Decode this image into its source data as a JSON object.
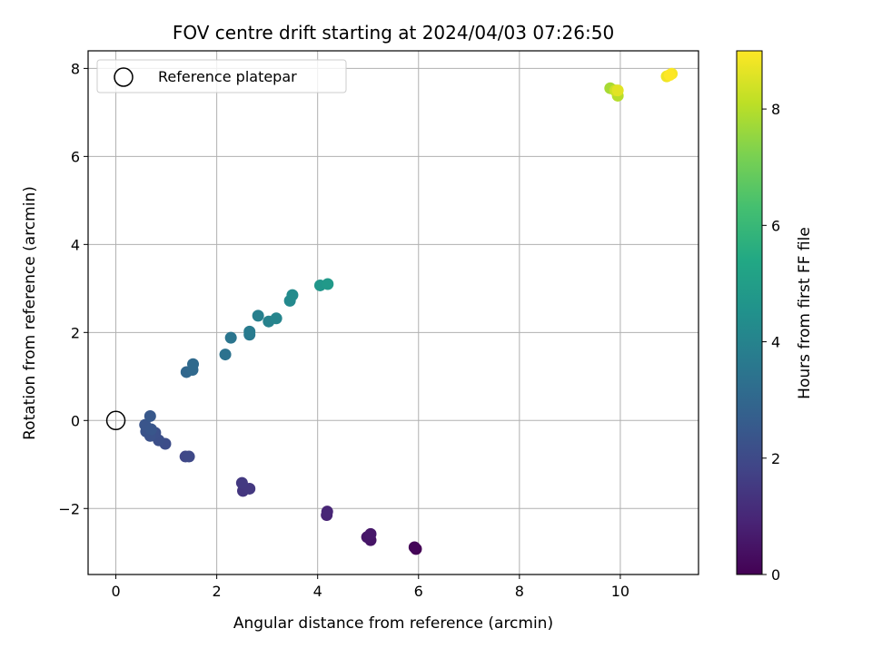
{
  "chart_data": {
    "type": "scatter",
    "title": "FOV centre drift starting at 2024/04/03 07:26:50",
    "xlabel": "Angular distance from reference (arcmin)",
    "ylabel": "Rotation from reference (arcmin)",
    "xlim": [
      -0.55,
      11.55
    ],
    "ylim": [
      -3.5,
      8.4
    ],
    "xticks": [
      0,
      2,
      4,
      6,
      8,
      10
    ],
    "xtick_labels": [
      "0",
      "2",
      "4",
      "6",
      "8",
      "10"
    ],
    "yticks": [
      -2,
      0,
      2,
      4,
      6,
      8
    ],
    "ytick_labels": [
      "−2",
      "0",
      "2",
      "4",
      "6",
      "8"
    ],
    "grid": true,
    "legend": {
      "placement": "top-left",
      "entries": [
        "Reference platepar"
      ]
    },
    "reference_point": {
      "x": 0,
      "y": 0
    },
    "colorbar": {
      "label": "Hours from first FF file",
      "range": [
        0,
        9.0
      ],
      "ticks": [
        0,
        2,
        4,
        6,
        8
      ],
      "tick_labels": [
        "0",
        "2",
        "4",
        "6",
        "8"
      ],
      "colormap": "viridis"
    },
    "points": [
      {
        "x": 5.95,
        "y": -2.92,
        "c": 0.0
      },
      {
        "x": 5.92,
        "y": -2.88,
        "c": 0.1
      },
      {
        "x": 5.05,
        "y": -2.72,
        "c": 0.5
      },
      {
        "x": 4.98,
        "y": -2.65,
        "c": 0.55
      },
      {
        "x": 5.05,
        "y": -2.58,
        "c": 0.6
      },
      {
        "x": 4.18,
        "y": -2.15,
        "c": 0.9
      },
      {
        "x": 4.19,
        "y": -2.07,
        "c": 0.95
      },
      {
        "x": 2.52,
        "y": -1.6,
        "c": 1.4
      },
      {
        "x": 2.65,
        "y": -1.55,
        "c": 1.45
      },
      {
        "x": 2.5,
        "y": -1.42,
        "c": 1.5
      },
      {
        "x": 1.38,
        "y": -0.82,
        "c": 1.9
      },
      {
        "x": 1.45,
        "y": -0.82,
        "c": 1.95
      },
      {
        "x": 0.98,
        "y": -0.53,
        "c": 2.1
      },
      {
        "x": 0.85,
        "y": -0.45,
        "c": 2.15
      },
      {
        "x": 0.78,
        "y": -0.28,
        "c": 2.2
      },
      {
        "x": 0.68,
        "y": -0.35,
        "c": 2.25
      },
      {
        "x": 0.6,
        "y": -0.25,
        "c": 2.3
      },
      {
        "x": 0.58,
        "y": -0.1,
        "c": 2.35
      },
      {
        "x": 0.7,
        "y": -0.2,
        "c": 2.4
      },
      {
        "x": 0.68,
        "y": 0.1,
        "c": 2.45
      },
      {
        "x": 1.4,
        "y": 1.1,
        "c": 3.0
      },
      {
        "x": 1.52,
        "y": 1.15,
        "c": 3.05
      },
      {
        "x": 1.53,
        "y": 1.28,
        "c": 3.1
      },
      {
        "x": 2.17,
        "y": 1.5,
        "c": 3.4
      },
      {
        "x": 2.28,
        "y": 1.88,
        "c": 3.5
      },
      {
        "x": 2.65,
        "y": 1.95,
        "c": 3.65
      },
      {
        "x": 2.65,
        "y": 2.02,
        "c": 3.7
      },
      {
        "x": 2.82,
        "y": 2.38,
        "c": 3.85
      },
      {
        "x": 3.03,
        "y": 2.25,
        "c": 3.95
      },
      {
        "x": 3.18,
        "y": 2.32,
        "c": 4.05
      },
      {
        "x": 3.45,
        "y": 2.72,
        "c": 4.2
      },
      {
        "x": 3.5,
        "y": 2.85,
        "c": 4.3
      },
      {
        "x": 4.05,
        "y": 3.07,
        "c": 4.7
      },
      {
        "x": 4.2,
        "y": 3.1,
        "c": 4.8
      },
      {
        "x": 9.8,
        "y": 7.55,
        "c": 7.8
      },
      {
        "x": 9.95,
        "y": 7.38,
        "c": 8.0
      },
      {
        "x": 9.9,
        "y": 7.5,
        "c": 8.3
      },
      {
        "x": 9.95,
        "y": 7.5,
        "c": 8.6
      },
      {
        "x": 10.92,
        "y": 7.82,
        "c": 8.8
      },
      {
        "x": 11.02,
        "y": 7.88,
        "c": 8.9
      },
      {
        "x": 10.98,
        "y": 7.85,
        "c": 9.0
      }
    ]
  }
}
